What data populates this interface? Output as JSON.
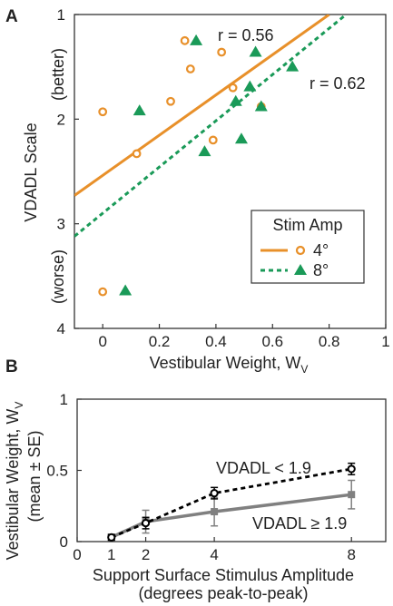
{
  "chart_data": [
    {
      "panel": "A",
      "type": "scatter",
      "xlabel": "Vestibular Weight, W",
      "xlabel_sub": "V",
      "ylabel": "VDADL Scale",
      "y_top_note": "(better)",
      "y_bottom_note": "(worse)",
      "xlim": [
        -0.1,
        1.0
      ],
      "ylim_inverted": [
        1,
        4
      ],
      "xticks": [
        "0",
        "0.2",
        "0.4",
        "0.6",
        "0.8",
        "1"
      ],
      "yticks": [
        "1",
        "2",
        "3",
        "4"
      ],
      "legend": {
        "title": "Stim Amp",
        "position": "right-middle"
      },
      "series": [
        {
          "name": "4°",
          "marker": "circle",
          "line": "solid",
          "color": "#E8902A",
          "r_label": "r = 0.56",
          "points": [
            [
              0.0,
              1.93
            ],
            [
              0.12,
              2.33
            ],
            [
              0.24,
              1.83
            ],
            [
              0.29,
              1.25
            ],
            [
              0.31,
              1.52
            ],
            [
              0.39,
              2.2
            ],
            [
              0.42,
              1.36
            ],
            [
              0.46,
              1.7
            ],
            [
              0.56,
              1.88
            ],
            [
              0.0,
              3.65
            ]
          ],
          "fit": [
            [
              -0.1,
              2.73
            ],
            [
              0.8,
              1.0
            ]
          ]
        },
        {
          "name": "8°",
          "marker": "triangle",
          "line": "dashed",
          "color": "#1A9A58",
          "r_label": "r = 0.62",
          "points": [
            [
              0.13,
              1.92
            ],
            [
              0.33,
              1.25
            ],
            [
              0.36,
              2.31
            ],
            [
              0.47,
              1.83
            ],
            [
              0.49,
              2.19
            ],
            [
              0.52,
              1.69
            ],
            [
              0.54,
              1.36
            ],
            [
              0.56,
              1.88
            ],
            [
              0.67,
              1.5
            ],
            [
              0.08,
              3.64
            ]
          ],
          "fit": [
            [
              -0.1,
              3.12
            ],
            [
              0.86,
              1.0
            ]
          ]
        }
      ]
    },
    {
      "panel": "B",
      "type": "line",
      "xlabel": "Support Surface Stimulus Amplitude",
      "xlabel2": "(degrees peak-to-peak)",
      "ylabel": "Vestibular Weight, W",
      "ylabel_sub": "V",
      "ylabel2": "(mean ± SE)",
      "xlim": [
        0,
        9
      ],
      "ylim": [
        0,
        1
      ],
      "xticks": [
        "0",
        "1",
        "2",
        "4",
        "8"
      ],
      "yticks": [
        "0",
        "0.5",
        "1"
      ],
      "x": [
        1,
        2,
        4,
        8
      ],
      "series": [
        {
          "name": "VDADL < 1.9",
          "color": "#000000",
          "line": "dashed",
          "marker": "circle",
          "values": [
            0.03,
            0.13,
            0.34,
            0.51
          ],
          "se": [
            0.02,
            0.04,
            0.04,
            0.04
          ]
        },
        {
          "name": "VDADL ≥ 1.9",
          "color": "#808080",
          "line": "solid",
          "marker": "square",
          "values": [
            0.03,
            0.14,
            0.21,
            0.33
          ],
          "se": [
            0.02,
            0.08,
            0.1,
            0.1
          ]
        }
      ]
    }
  ]
}
